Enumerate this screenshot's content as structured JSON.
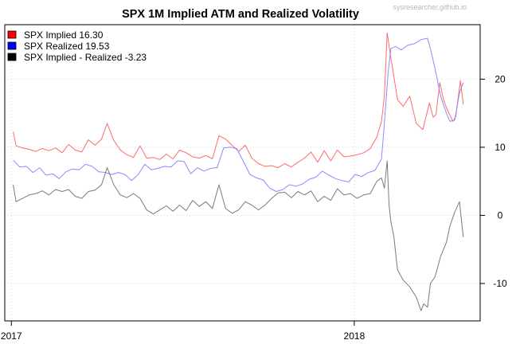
{
  "watermark": "sysresearcher.github.io",
  "chart_data": {
    "type": "line",
    "title": "SPX 1M Implied ATM and Realized Volatility",
    "xlabel": "",
    "ylabel": "",
    "x_range": [
      "2016-12-25",
      "2018-05-15"
    ],
    "ylim": [
      -15.5,
      28
    ],
    "yticks": [
      -10,
      0,
      10,
      20
    ],
    "xticks": [
      {
        "date": "2017-01-01",
        "label": "2017"
      },
      {
        "date": "2018-01-01",
        "label": "2018"
      }
    ],
    "y_axis_side": "right",
    "grid": true,
    "legend_position": "top-left",
    "legend": [
      {
        "label": "SPX Implied 16.30",
        "color": "#ff0000"
      },
      {
        "label": "SPX Realized 19.53",
        "color": "#0000ff"
      },
      {
        "label": "SPX Implied - Realized -3.23",
        "color": "#000000"
      }
    ],
    "series": [
      {
        "name": "SPX Implied",
        "color": "#ff6a6a",
        "points": [
          [
            "2017-01-03",
            12.3
          ],
          [
            "2017-01-06",
            10.2
          ],
          [
            "2017-01-13",
            9.9
          ],
          [
            "2017-01-20",
            9.7
          ],
          [
            "2017-01-27",
            9.4
          ],
          [
            "2017-02-03",
            9.8
          ],
          [
            "2017-02-10",
            9.5
          ],
          [
            "2017-02-17",
            9.9
          ],
          [
            "2017-02-24",
            9.2
          ],
          [
            "2017-03-03",
            10.4
          ],
          [
            "2017-03-10",
            9.6
          ],
          [
            "2017-03-17",
            9.3
          ],
          [
            "2017-03-24",
            11.1
          ],
          [
            "2017-03-31",
            10.3
          ],
          [
            "2017-04-07",
            11.2
          ],
          [
            "2017-04-13",
            13.5
          ],
          [
            "2017-04-20",
            11.0
          ],
          [
            "2017-04-27",
            9.6
          ],
          [
            "2017-05-04",
            8.9
          ],
          [
            "2017-05-11",
            8.5
          ],
          [
            "2017-05-18",
            10.2
          ],
          [
            "2017-05-25",
            8.4
          ],
          [
            "2017-06-01",
            8.5
          ],
          [
            "2017-06-08",
            8.2
          ],
          [
            "2017-06-15",
            9.0
          ],
          [
            "2017-06-22",
            8.3
          ],
          [
            "2017-06-29",
            9.6
          ],
          [
            "2017-07-06",
            9.2
          ],
          [
            "2017-07-13",
            8.6
          ],
          [
            "2017-07-20",
            8.4
          ],
          [
            "2017-07-27",
            8.8
          ],
          [
            "2017-08-03",
            8.3
          ],
          [
            "2017-08-10",
            11.7
          ],
          [
            "2017-08-17",
            11.2
          ],
          [
            "2017-08-24",
            10.3
          ],
          [
            "2017-08-31",
            9.4
          ],
          [
            "2017-09-07",
            10.3
          ],
          [
            "2017-09-14",
            8.4
          ],
          [
            "2017-09-21",
            7.6
          ],
          [
            "2017-09-28",
            7.2
          ],
          [
            "2017-10-05",
            7.3
          ],
          [
            "2017-10-12",
            7.0
          ],
          [
            "2017-10-19",
            7.6
          ],
          [
            "2017-10-26",
            7.1
          ],
          [
            "2017-11-02",
            7.8
          ],
          [
            "2017-11-09",
            8.4
          ],
          [
            "2017-11-16",
            9.3
          ],
          [
            "2017-11-23",
            7.8
          ],
          [
            "2017-11-30",
            9.5
          ],
          [
            "2017-12-07",
            8.0
          ],
          [
            "2017-12-14",
            9.6
          ],
          [
            "2017-12-21",
            8.6
          ],
          [
            "2017-12-28",
            8.7
          ],
          [
            "2018-01-04",
            8.9
          ],
          [
            "2018-01-11",
            9.2
          ],
          [
            "2018-01-18",
            9.8
          ],
          [
            "2018-01-25",
            11.5
          ],
          [
            "2018-01-30",
            13.8
          ],
          [
            "2018-02-02",
            17.5
          ],
          [
            "2018-02-05",
            26.8
          ],
          [
            "2018-02-08",
            24.0
          ],
          [
            "2018-02-12",
            20.5
          ],
          [
            "2018-02-16",
            17.0
          ],
          [
            "2018-02-22",
            16.0
          ],
          [
            "2018-03-01",
            17.5
          ],
          [
            "2018-03-08",
            13.5
          ],
          [
            "2018-03-15",
            12.6
          ],
          [
            "2018-03-22",
            16.5
          ],
          [
            "2018-03-26",
            14.4
          ],
          [
            "2018-03-29",
            14.8
          ],
          [
            "2018-04-02",
            19.5
          ],
          [
            "2018-04-06",
            17.0
          ],
          [
            "2018-04-10",
            15.5
          ],
          [
            "2018-04-16",
            13.8
          ],
          [
            "2018-04-19",
            14.5
          ],
          [
            "2018-04-24",
            19.8
          ],
          [
            "2018-04-27",
            16.3
          ]
        ]
      },
      {
        "name": "SPX Realized",
        "color": "#8a8aff",
        "points": [
          [
            "2017-01-03",
            8.1
          ],
          [
            "2017-01-10",
            7.1
          ],
          [
            "2017-01-17",
            7.2
          ],
          [
            "2017-01-24",
            6.3
          ],
          [
            "2017-01-31",
            7.0
          ],
          [
            "2017-02-07",
            5.9
          ],
          [
            "2017-02-14",
            6.1
          ],
          [
            "2017-02-21",
            5.4
          ],
          [
            "2017-02-28",
            6.4
          ],
          [
            "2017-03-07",
            6.8
          ],
          [
            "2017-03-14",
            6.7
          ],
          [
            "2017-03-21",
            7.5
          ],
          [
            "2017-03-28",
            7.2
          ],
          [
            "2017-04-04",
            6.4
          ],
          [
            "2017-04-11",
            6.3
          ],
          [
            "2017-04-18",
            6.0
          ],
          [
            "2017-04-25",
            6.3
          ],
          [
            "2017-05-02",
            6.0
          ],
          [
            "2017-05-09",
            5.1
          ],
          [
            "2017-05-16",
            6.0
          ],
          [
            "2017-05-23",
            7.5
          ],
          [
            "2017-05-30",
            6.7
          ],
          [
            "2017-06-06",
            6.9
          ],
          [
            "2017-06-13",
            7.2
          ],
          [
            "2017-06-20",
            7.1
          ],
          [
            "2017-06-27",
            8.0
          ],
          [
            "2017-07-04",
            7.9
          ],
          [
            "2017-07-11",
            6.1
          ],
          [
            "2017-07-18",
            7.0
          ],
          [
            "2017-07-25",
            6.5
          ],
          [
            "2017-08-01",
            6.9
          ],
          [
            "2017-08-08",
            7.0
          ],
          [
            "2017-08-15",
            9.9
          ],
          [
            "2017-08-22",
            10.0
          ],
          [
            "2017-08-29",
            9.8
          ],
          [
            "2017-09-05",
            7.9
          ],
          [
            "2017-09-12",
            6.0
          ],
          [
            "2017-09-19",
            5.5
          ],
          [
            "2017-09-26",
            5.2
          ],
          [
            "2017-10-03",
            4.0
          ],
          [
            "2017-10-10",
            3.5
          ],
          [
            "2017-10-17",
            3.8
          ],
          [
            "2017-10-24",
            4.5
          ],
          [
            "2017-10-31",
            4.3
          ],
          [
            "2017-11-07",
            4.6
          ],
          [
            "2017-11-14",
            5.3
          ],
          [
            "2017-11-21",
            5.6
          ],
          [
            "2017-11-28",
            6.5
          ],
          [
            "2017-12-05",
            5.9
          ],
          [
            "2017-12-12",
            5.4
          ],
          [
            "2017-12-19",
            5.1
          ],
          [
            "2017-12-26",
            4.9
          ],
          [
            "2018-01-02",
            6.0
          ],
          [
            "2018-01-09",
            5.7
          ],
          [
            "2018-01-16",
            6.3
          ],
          [
            "2018-01-23",
            6.6
          ],
          [
            "2018-01-30",
            8.3
          ],
          [
            "2018-02-02",
            13.5
          ],
          [
            "2018-02-06",
            21.0
          ],
          [
            "2018-02-09",
            24.5
          ],
          [
            "2018-02-14",
            24.8
          ],
          [
            "2018-02-20",
            24.3
          ],
          [
            "2018-02-27",
            25.0
          ],
          [
            "2018-03-06",
            25.2
          ],
          [
            "2018-03-13",
            25.8
          ],
          [
            "2018-03-20",
            26.0
          ],
          [
            "2018-03-23",
            24.5
          ],
          [
            "2018-03-28",
            21.5
          ],
          [
            "2018-04-03",
            17.5
          ],
          [
            "2018-04-09",
            15.0
          ],
          [
            "2018-04-13",
            13.8
          ],
          [
            "2018-04-18",
            14.0
          ],
          [
            "2018-04-23",
            18.0
          ],
          [
            "2018-04-27",
            19.5
          ]
        ]
      },
      {
        "name": "SPX Implied - Realized",
        "color": "#7a7a7a",
        "points": [
          [
            "2017-01-03",
            4.5
          ],
          [
            "2017-01-06",
            2.0
          ],
          [
            "2017-01-13",
            2.5
          ],
          [
            "2017-01-20",
            3.0
          ],
          [
            "2017-01-27",
            3.2
          ],
          [
            "2017-02-03",
            3.6
          ],
          [
            "2017-02-10",
            3.0
          ],
          [
            "2017-02-17",
            3.8
          ],
          [
            "2017-02-24",
            3.5
          ],
          [
            "2017-03-03",
            3.8
          ],
          [
            "2017-03-10",
            2.8
          ],
          [
            "2017-03-17",
            2.5
          ],
          [
            "2017-03-24",
            3.5
          ],
          [
            "2017-03-31",
            3.7
          ],
          [
            "2017-04-07",
            4.5
          ],
          [
            "2017-04-13",
            7.0
          ],
          [
            "2017-04-20",
            4.5
          ],
          [
            "2017-04-27",
            3.0
          ],
          [
            "2017-05-04",
            2.6
          ],
          [
            "2017-05-11",
            3.2
          ],
          [
            "2017-05-18",
            2.5
          ],
          [
            "2017-05-25",
            0.8
          ],
          [
            "2017-06-01",
            0.2
          ],
          [
            "2017-06-08",
            0.8
          ],
          [
            "2017-06-15",
            1.4
          ],
          [
            "2017-06-22",
            0.6
          ],
          [
            "2017-06-29",
            1.5
          ],
          [
            "2017-07-06",
            0.7
          ],
          [
            "2017-07-13",
            2.2
          ],
          [
            "2017-07-20",
            1.3
          ],
          [
            "2017-07-27",
            2.0
          ],
          [
            "2017-08-03",
            1.0
          ],
          [
            "2017-08-10",
            4.5
          ],
          [
            "2017-08-17",
            1.0
          ],
          [
            "2017-08-24",
            0.3
          ],
          [
            "2017-08-31",
            0.8
          ],
          [
            "2017-09-07",
            2.0
          ],
          [
            "2017-09-14",
            1.5
          ],
          [
            "2017-09-21",
            0.8
          ],
          [
            "2017-09-28",
            1.5
          ],
          [
            "2017-10-05",
            2.5
          ],
          [
            "2017-10-12",
            3.3
          ],
          [
            "2017-10-19",
            3.4
          ],
          [
            "2017-10-26",
            2.6
          ],
          [
            "2017-11-02",
            3.5
          ],
          [
            "2017-11-09",
            3.0
          ],
          [
            "2017-11-16",
            3.6
          ],
          [
            "2017-11-23",
            2.0
          ],
          [
            "2017-11-30",
            2.8
          ],
          [
            "2017-12-07",
            2.2
          ],
          [
            "2017-12-14",
            3.9
          ],
          [
            "2017-12-21",
            3.0
          ],
          [
            "2017-12-28",
            3.2
          ],
          [
            "2018-01-04",
            2.5
          ],
          [
            "2018-01-11",
            3.0
          ],
          [
            "2018-01-18",
            3.2
          ],
          [
            "2018-01-25",
            5.0
          ],
          [
            "2018-01-30",
            5.5
          ],
          [
            "2018-02-02",
            4.0
          ],
          [
            "2018-02-05",
            8.0
          ],
          [
            "2018-02-07",
            1.5
          ],
          [
            "2018-02-09",
            -1.0
          ],
          [
            "2018-02-12",
            -3.0
          ],
          [
            "2018-02-16",
            -8.0
          ],
          [
            "2018-02-22",
            -9.5
          ],
          [
            "2018-03-01",
            -10.5
          ],
          [
            "2018-03-08",
            -12.0
          ],
          [
            "2018-03-13",
            -14.0
          ],
          [
            "2018-03-16",
            -13.0
          ],
          [
            "2018-03-20",
            -13.5
          ],
          [
            "2018-03-23",
            -10.0
          ],
          [
            "2018-03-28",
            -9.0
          ],
          [
            "2018-04-03",
            -6.0
          ],
          [
            "2018-04-09",
            -4.0
          ],
          [
            "2018-04-13",
            -1.5
          ],
          [
            "2018-04-18",
            0.5
          ],
          [
            "2018-04-23",
            2.0
          ],
          [
            "2018-04-27",
            -3.2
          ]
        ]
      }
    ]
  }
}
